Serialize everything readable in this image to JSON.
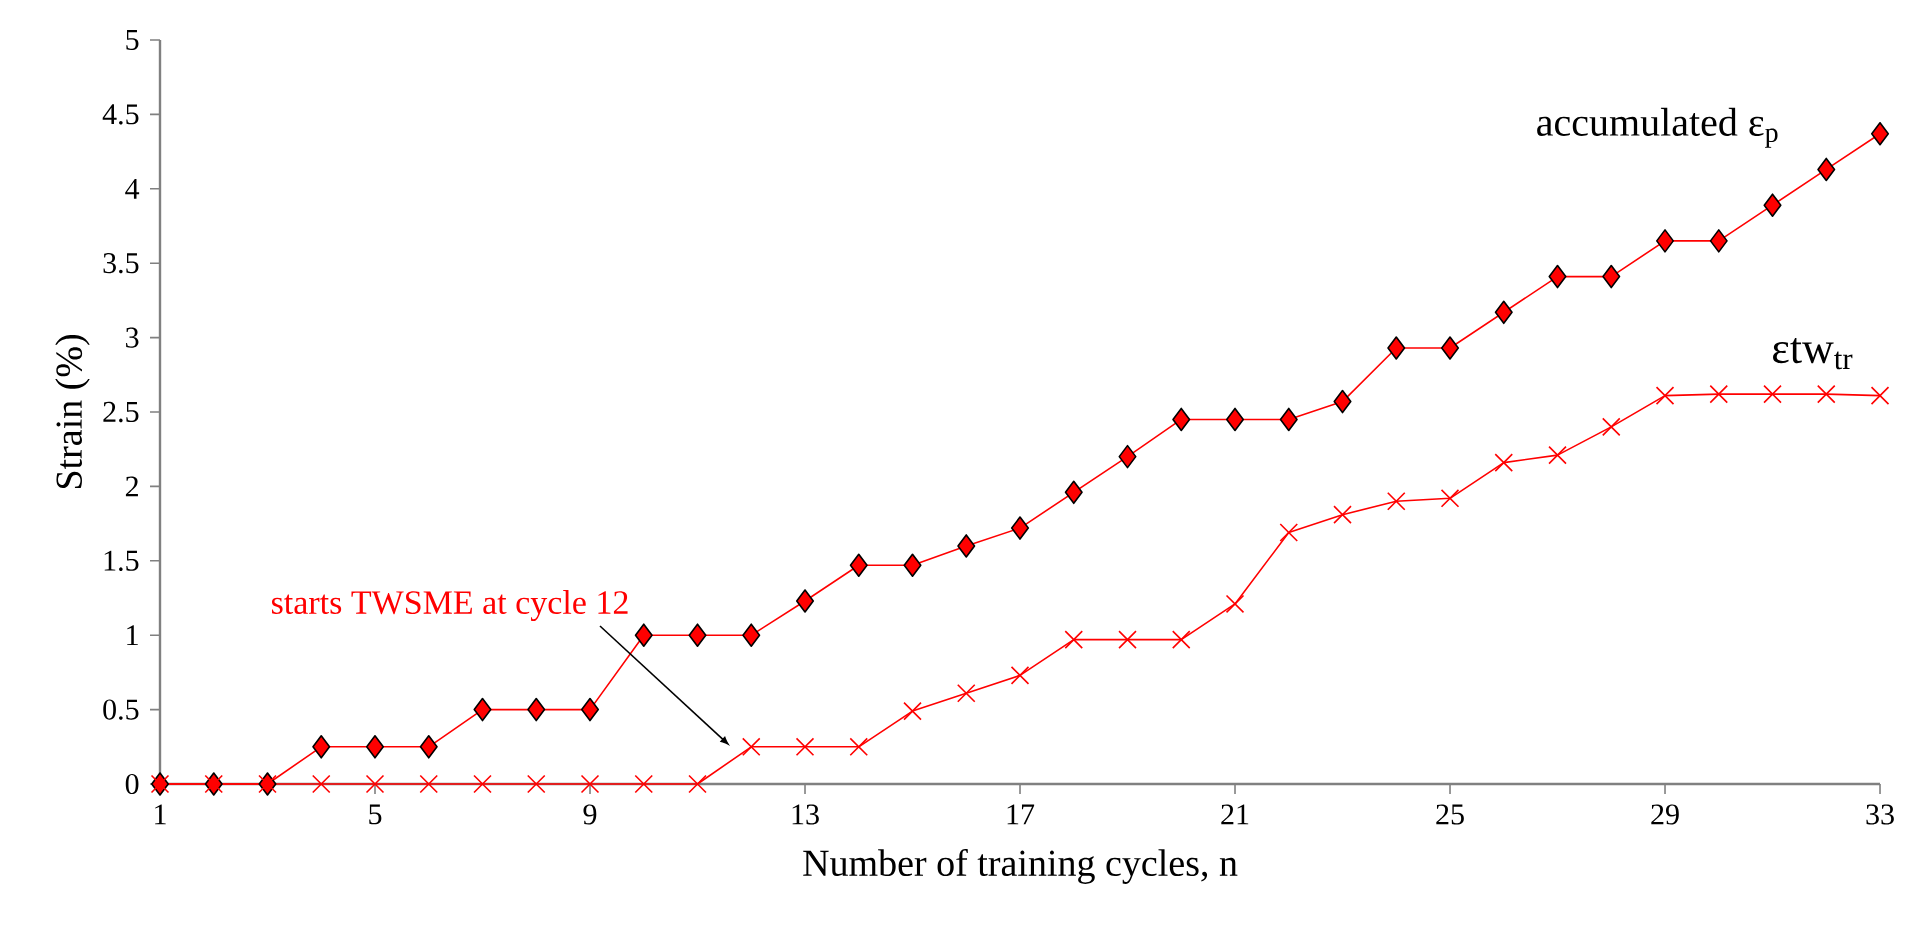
{
  "chart_data": {
    "type": "line",
    "xlabel": "Number of training cycles, n",
    "ylabel": "Strain (%)",
    "x": [
      1,
      2,
      3,
      4,
      5,
      6,
      7,
      8,
      9,
      10,
      11,
      12,
      13,
      14,
      15,
      16,
      17,
      18,
      19,
      20,
      21,
      22,
      23,
      24,
      25,
      26,
      27,
      28,
      29,
      30,
      31,
      32,
      33
    ],
    "series": [
      {
        "name": "accumulated ε$_{p}$",
        "color": "#ff0000",
        "marker": "diamond",
        "values": [
          0,
          0,
          0,
          0.25,
          0.25,
          0.25,
          0.5,
          0.5,
          0.5,
          1.0,
          1.0,
          1.0,
          1.23,
          1.47,
          1.47,
          1.6,
          1.72,
          1.96,
          2.2,
          2.45,
          2.45,
          2.45,
          2.57,
          2.93,
          2.93,
          3.17,
          3.41,
          3.41,
          3.65,
          3.65,
          3.89,
          4.13,
          4.37
        ]
      },
      {
        "name": "εtw$_{tr}$",
        "color": "#ff0000",
        "marker": "cross",
        "values": [
          0,
          0,
          0,
          0,
          0,
          0,
          0,
          0,
          0,
          0,
          0,
          0.25,
          0.25,
          0.25,
          0.49,
          0.61,
          0.73,
          0.97,
          0.97,
          0.97,
          1.21,
          1.69,
          1.81,
          1.9,
          1.92,
          2.16,
          2.21,
          2.4,
          2.61,
          2.62,
          2.62,
          2.62,
          2.61
        ]
      }
    ],
    "xlim": [
      1,
      33
    ],
    "xticks": [
      1,
      5,
      9,
      13,
      17,
      21,
      25,
      29,
      33
    ],
    "ylim": [
      0,
      5
    ],
    "yticks": [
      0,
      0.5,
      1,
      1.5,
      2,
      2.5,
      3,
      3.5,
      4,
      4.5,
      5
    ],
    "grid": false,
    "line_style": "solid",
    "annotations": [
      "starts TWSME at cycle 12"
    ]
  }
}
